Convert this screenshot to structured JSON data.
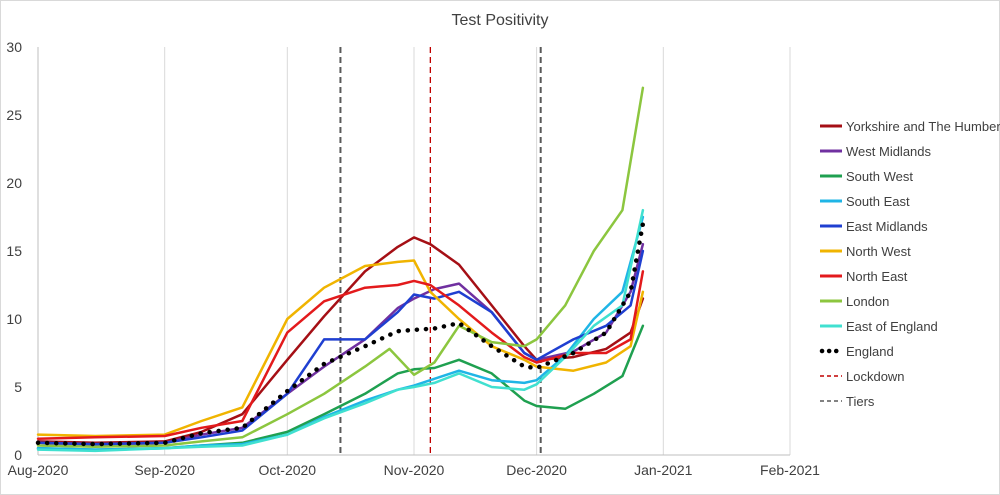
{
  "chart_data": {
    "type": "line",
    "title": "Test Positivity",
    "xlabel": "",
    "ylabel": "",
    "x_ticks": [
      "Aug-2020",
      "Sep-2020",
      "Oct-2020",
      "Nov-2020",
      "Dec-2020",
      "Jan-2021",
      "Feb-2021"
    ],
    "xlim": [
      "2020-08-01",
      "2021-02-01"
    ],
    "ylim": [
      0,
      30
    ],
    "y_ticks": [
      0,
      5,
      10,
      15,
      20,
      25,
      30
    ],
    "grid": "vertical",
    "legend_position": "right",
    "series": [
      {
        "name": "Yorkshire and The Humber",
        "color": "#a50f15",
        "style": "solid",
        "x": [
          "2020-08-01",
          "2020-08-15",
          "2020-09-01",
          "2020-09-10",
          "2020-09-20",
          "2020-10-01",
          "2020-10-10",
          "2020-10-20",
          "2020-10-28",
          "2020-11-01",
          "2020-11-05",
          "2020-11-12",
          "2020-11-20",
          "2020-11-28",
          "2020-12-01",
          "2020-12-10",
          "2020-12-18",
          "2020-12-24",
          "2020-12-27"
        ],
        "y": [
          1.0,
          0.9,
          1.0,
          1.7,
          3.0,
          7.0,
          10.2,
          13.5,
          15.3,
          16.0,
          15.5,
          14.0,
          11.0,
          8.0,
          7.0,
          7.2,
          7.8,
          9.0,
          11.5
        ]
      },
      {
        "name": "West Midlands",
        "color": "#7030a0",
        "style": "solid",
        "x": [
          "2020-08-01",
          "2020-08-15",
          "2020-09-01",
          "2020-09-10",
          "2020-09-20",
          "2020-10-01",
          "2020-10-10",
          "2020-10-20",
          "2020-10-28",
          "2020-11-01",
          "2020-11-06",
          "2020-11-12",
          "2020-11-20",
          "2020-11-28",
          "2020-12-01",
          "2020-12-10",
          "2020-12-18",
          "2020-12-24",
          "2020-12-27"
        ],
        "y": [
          0.9,
          0.7,
          0.9,
          1.5,
          2.0,
          4.5,
          6.5,
          8.5,
          10.8,
          11.5,
          12.2,
          12.6,
          10.5,
          7.5,
          7.0,
          7.6,
          9.0,
          12.0,
          15.5
        ]
      },
      {
        "name": "South West",
        "color": "#1fa050",
        "style": "solid",
        "x": [
          "2020-08-01",
          "2020-08-15",
          "2020-09-01",
          "2020-09-10",
          "2020-09-20",
          "2020-10-01",
          "2020-10-10",
          "2020-10-20",
          "2020-10-28",
          "2020-11-01",
          "2020-11-06",
          "2020-11-12",
          "2020-11-20",
          "2020-11-28",
          "2020-12-01",
          "2020-12-08",
          "2020-12-15",
          "2020-12-22",
          "2020-12-27"
        ],
        "y": [
          0.5,
          0.4,
          0.5,
          0.7,
          0.9,
          1.7,
          3.0,
          4.5,
          6.0,
          6.3,
          6.4,
          7.0,
          6.0,
          4.0,
          3.6,
          3.4,
          4.5,
          5.8,
          9.5
        ]
      },
      {
        "name": "South East",
        "color": "#1fb5e6",
        "style": "solid",
        "x": [
          "2020-08-01",
          "2020-08-15",
          "2020-09-01",
          "2020-09-10",
          "2020-09-20",
          "2020-10-01",
          "2020-10-10",
          "2020-10-20",
          "2020-10-28",
          "2020-11-01",
          "2020-11-06",
          "2020-11-12",
          "2020-11-20",
          "2020-11-28",
          "2020-12-01",
          "2020-12-08",
          "2020-12-15",
          "2020-12-22",
          "2020-12-27"
        ],
        "y": [
          0.5,
          0.4,
          0.5,
          0.7,
          0.8,
          1.5,
          2.8,
          4.0,
          4.8,
          5.1,
          5.6,
          6.2,
          5.5,
          5.3,
          5.5,
          7.3,
          10.0,
          12.0,
          17.5
        ]
      },
      {
        "name": "East Midlands",
        "color": "#1f3fd1",
        "style": "solid",
        "x": [
          "2020-08-01",
          "2020-08-15",
          "2020-09-01",
          "2020-09-10",
          "2020-09-20",
          "2020-10-01",
          "2020-10-10",
          "2020-10-20",
          "2020-10-28",
          "2020-11-01",
          "2020-11-06",
          "2020-11-12",
          "2020-11-20",
          "2020-11-28",
          "2020-12-01",
          "2020-12-10",
          "2020-12-18",
          "2020-12-24",
          "2020-12-27"
        ],
        "y": [
          0.9,
          0.8,
          0.9,
          1.3,
          1.8,
          4.5,
          8.5,
          8.5,
          10.5,
          11.8,
          11.5,
          12.0,
          10.5,
          7.5,
          7.0,
          8.5,
          9.5,
          11.0,
          15.0
        ]
      },
      {
        "name": "North West",
        "color": "#f0b400",
        "style": "solid",
        "x": [
          "2020-08-01",
          "2020-08-15",
          "2020-09-01",
          "2020-09-10",
          "2020-09-20",
          "2020-10-01",
          "2020-10-10",
          "2020-10-20",
          "2020-10-28",
          "2020-11-01",
          "2020-11-05",
          "2020-11-12",
          "2020-11-20",
          "2020-11-28",
          "2020-12-01",
          "2020-12-10",
          "2020-12-18",
          "2020-12-24",
          "2020-12-27"
        ],
        "y": [
          1.5,
          1.4,
          1.5,
          2.5,
          3.5,
          10.0,
          12.3,
          13.9,
          14.2,
          14.3,
          12.0,
          10.0,
          8.0,
          7.0,
          6.5,
          6.2,
          6.8,
          8.0,
          12.0
        ]
      },
      {
        "name": "North East",
        "color": "#e31a1c",
        "style": "solid",
        "x": [
          "2020-08-01",
          "2020-08-15",
          "2020-09-01",
          "2020-09-10",
          "2020-09-20",
          "2020-10-01",
          "2020-10-10",
          "2020-10-20",
          "2020-10-28",
          "2020-11-01",
          "2020-11-05",
          "2020-11-12",
          "2020-11-20",
          "2020-11-28",
          "2020-12-01",
          "2020-12-10",
          "2020-12-18",
          "2020-12-24",
          "2020-12-27"
        ],
        "y": [
          1.2,
          1.3,
          1.4,
          2.0,
          2.5,
          9.0,
          11.3,
          12.3,
          12.5,
          12.8,
          12.5,
          11.0,
          9.0,
          7.2,
          6.8,
          7.5,
          7.5,
          8.5,
          13.5
        ]
      },
      {
        "name": "London",
        "color": "#8cc63f",
        "style": "solid",
        "x": [
          "2020-08-01",
          "2020-08-15",
          "2020-09-01",
          "2020-09-10",
          "2020-09-20",
          "2020-10-01",
          "2020-10-10",
          "2020-10-20",
          "2020-10-26",
          "2020-11-01",
          "2020-11-06",
          "2020-11-12",
          "2020-11-20",
          "2020-11-28",
          "2020-12-01",
          "2020-12-08",
          "2020-12-15",
          "2020-12-22",
          "2020-12-27"
        ],
        "y": [
          0.7,
          0.6,
          0.7,
          1.0,
          1.3,
          3.0,
          4.5,
          6.5,
          7.8,
          5.9,
          6.8,
          9.5,
          8.3,
          8.0,
          8.5,
          11.0,
          15.0,
          18.0,
          27.0
        ]
      },
      {
        "name": "East of England",
        "color": "#40e0d0",
        "style": "solid",
        "x": [
          "2020-08-01",
          "2020-08-15",
          "2020-09-01",
          "2020-09-10",
          "2020-09-20",
          "2020-10-01",
          "2020-10-10",
          "2020-10-20",
          "2020-10-28",
          "2020-11-01",
          "2020-11-06",
          "2020-11-12",
          "2020-11-20",
          "2020-11-28",
          "2020-12-01",
          "2020-12-08",
          "2020-12-15",
          "2020-12-22",
          "2020-12-27"
        ],
        "y": [
          0.4,
          0.3,
          0.5,
          0.6,
          0.7,
          1.5,
          2.7,
          3.8,
          4.8,
          5.0,
          5.3,
          6.0,
          5.0,
          4.8,
          5.2,
          7.2,
          9.5,
          11.0,
          18.0
        ]
      },
      {
        "name": "England",
        "color": "#000000",
        "style": "dotted",
        "x": [
          "2020-08-01",
          "2020-08-15",
          "2020-09-01",
          "2020-09-10",
          "2020-09-20",
          "2020-10-01",
          "2020-10-10",
          "2020-10-20",
          "2020-10-28",
          "2020-11-01",
          "2020-11-06",
          "2020-11-12",
          "2020-11-20",
          "2020-11-28",
          "2020-12-01",
          "2020-12-10",
          "2020-12-18",
          "2020-12-24",
          "2020-12-27"
        ],
        "y": [
          0.9,
          0.8,
          0.9,
          1.6,
          2.0,
          4.7,
          6.7,
          8.0,
          9.1,
          9.2,
          9.3,
          9.7,
          8.0,
          6.5,
          6.4,
          7.5,
          9.0,
          12.0,
          17.0
        ]
      },
      {
        "name": "Lockdown",
        "color": "#c00000",
        "style": "dashed",
        "vertical_at": "2020-11-05"
      },
      {
        "name": "Tiers",
        "color": "#595959",
        "style": "dashed",
        "vertical_at": [
          "2020-10-14",
          "2020-12-02"
        ]
      }
    ]
  }
}
